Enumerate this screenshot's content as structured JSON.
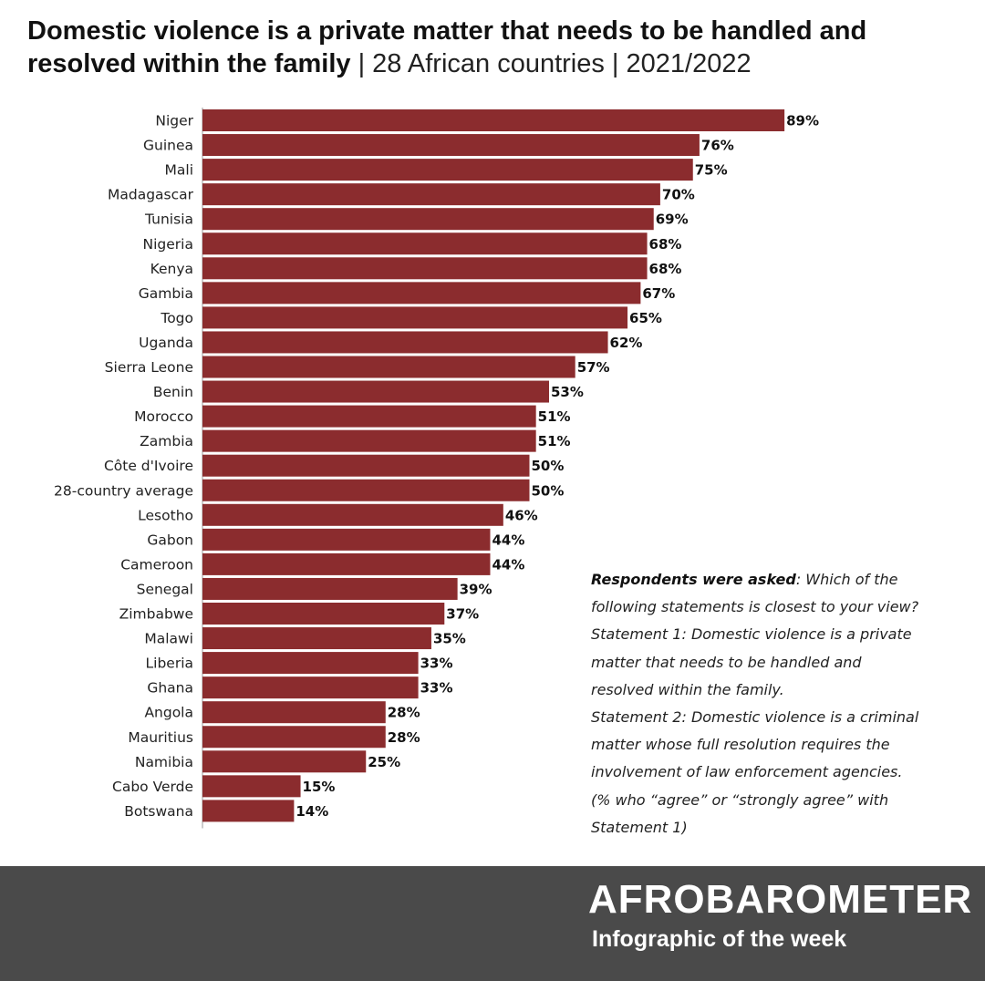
{
  "title": {
    "bold": "Domestic violence is a private matter that needs to be handled and resolved within the family",
    "light": " | 28 African countries | 2021/2022"
  },
  "colors": {
    "bar": "#8b2c2e",
    "axis": "#999999",
    "footer": "#4a4a4a"
  },
  "chart_data": {
    "type": "bar",
    "orientation": "horizontal",
    "title": "Domestic violence is a private matter that needs to be handled and resolved within the family | 28 African countries | 2021/2022",
    "xlabel": "",
    "ylabel": "",
    "xlim": [
      0,
      100
    ],
    "unit": "%",
    "categories": [
      "Niger",
      "Guinea",
      "Mali",
      "Madagascar",
      "Tunisia",
      "Nigeria",
      "Kenya",
      "Gambia",
      "Togo",
      "Uganda",
      "Sierra Leone",
      "Benin",
      "Morocco",
      "Zambia",
      "Côte d'Ivoire",
      "28-country average",
      "Lesotho",
      "Gabon",
      "Cameroon",
      "Senegal",
      "Zimbabwe",
      "Malawi",
      "Liberia",
      "Ghana",
      "Angola",
      "Mauritius",
      "Namibia",
      "Cabo Verde",
      "Botswana"
    ],
    "values": [
      89,
      76,
      75,
      70,
      69,
      68,
      68,
      67,
      65,
      62,
      57,
      53,
      51,
      51,
      50,
      50,
      46,
      44,
      44,
      39,
      37,
      35,
      33,
      33,
      28,
      28,
      25,
      15,
      14
    ],
    "value_labels": [
      "89%",
      "76%",
      "75%",
      "70%",
      "69%",
      "68%",
      "68%",
      "67%",
      "65%",
      "62%",
      "57%",
      "53%",
      "51%",
      "51%",
      "50%",
      "50%",
      "46%",
      "44%",
      "44%",
      "39%",
      "37%",
      "35%",
      "33%",
      "33%",
      "28%",
      "28%",
      "25%",
      "15%",
      "14%"
    ]
  },
  "note": {
    "lead": "Respondents were asked",
    "line1_rest": ": Which of the",
    "lines": [
      "following statements is closest to your view?",
      "Statement 1: Domestic violence is a private",
      "matter that needs to be handled and",
      "resolved within the family.",
      "Statement 2: Domestic violence is a criminal",
      "matter whose full resolution requires the",
      "involvement of law enforcement agencies.",
      "(% who “agree” or “strongly agree” with",
      "Statement 1)"
    ]
  },
  "footer": {
    "brand": "AFROBAROMETER",
    "tagline": "Infographic of the week"
  }
}
